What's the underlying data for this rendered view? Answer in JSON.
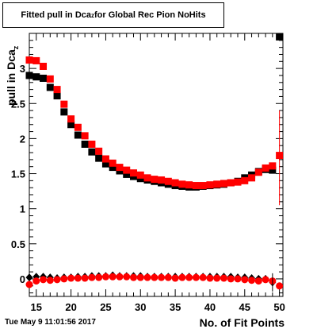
{
  "title": {
    "prefix": "Fitted pull in Dca",
    "sub": "z",
    "suffix": " for Global Rec Pion NoHits"
  },
  "timestamp": "Tue May  9 11:01:56 2017",
  "colors": {
    "series_black": "#000000",
    "series_red": "#ff0000"
  },
  "chart_data": {
    "type": "scatter",
    "xlabel": "No. of Fit Points",
    "ylabel_prefix": "pull in Dca",
    "ylabel_sub": "z",
    "xlim": [
      14,
      50.5
    ],
    "ylim": [
      -0.25,
      3.5
    ],
    "xticks": [
      15,
      20,
      25,
      30,
      35,
      40,
      45,
      50
    ],
    "yticks": [
      0,
      0.5,
      1,
      1.5,
      2,
      2.5,
      3
    ],
    "ytick_labels": [
      "0",
      "0.5",
      "1",
      "1.5",
      "2",
      "2.5",
      "3"
    ],
    "grid": false,
    "series": [
      {
        "color": "#000000",
        "marker": "square",
        "x": [
          14,
          15,
          16,
          17,
          18,
          19,
          20,
          21,
          22,
          23,
          24,
          25,
          26,
          27,
          28,
          29,
          30,
          31,
          32,
          33,
          34,
          35,
          36,
          37,
          38,
          39,
          40,
          41,
          42,
          43,
          44,
          45,
          46,
          47,
          48,
          49,
          50
        ],
        "y": [
          2.9,
          2.88,
          2.86,
          2.73,
          2.61,
          2.38,
          2.2,
          2.05,
          1.92,
          1.81,
          1.72,
          1.64,
          1.59,
          1.54,
          1.49,
          1.46,
          1.43,
          1.41,
          1.39,
          1.37,
          1.35,
          1.33,
          1.32,
          1.31,
          1.31,
          1.32,
          1.33,
          1.34,
          1.35,
          1.37,
          1.39,
          1.44,
          1.48,
          1.53,
          1.56,
          1.55,
          3.45
        ]
      },
      {
        "color": "#ff0000",
        "marker": "square",
        "x": [
          14,
          15,
          16,
          17,
          18,
          19,
          20,
          21,
          22,
          23,
          24,
          25,
          26,
          27,
          28,
          29,
          30,
          31,
          32,
          33,
          34,
          35,
          36,
          37,
          38,
          39,
          40,
          41,
          42,
          43,
          44,
          45,
          46,
          47,
          48,
          49,
          50
        ],
        "y": [
          3.12,
          3.11,
          3.03,
          2.85,
          2.7,
          2.49,
          2.28,
          2.16,
          2.04,
          1.92,
          1.82,
          1.71,
          1.65,
          1.59,
          1.55,
          1.51,
          1.48,
          1.44,
          1.42,
          1.41,
          1.39,
          1.37,
          1.35,
          1.34,
          1.33,
          1.33,
          1.34,
          1.35,
          1.36,
          1.37,
          1.38,
          1.4,
          1.44,
          1.52,
          1.58,
          1.61,
          1.76
        ]
      },
      {
        "color": "#000000",
        "marker": "diamond",
        "x": [
          14,
          15,
          16,
          17,
          18,
          19,
          20,
          21,
          22,
          23,
          24,
          25,
          26,
          27,
          28,
          29,
          30,
          31,
          32,
          33,
          34,
          35,
          36,
          37,
          38,
          39,
          40,
          41,
          42,
          43,
          44,
          45,
          46,
          47,
          48,
          49,
          50
        ],
        "y": [
          0.02,
          0.03,
          0.03,
          0.02,
          0.01,
          0.02,
          0.02,
          0.03,
          0.03,
          0.04,
          0.04,
          0.04,
          0.05,
          0.04,
          0.04,
          0.04,
          0.04,
          0.03,
          0.03,
          0.03,
          0.03,
          0.03,
          0.03,
          0.03,
          0.03,
          0.03,
          0.03,
          0.03,
          0.03,
          0.03,
          0.02,
          0.02,
          0.01,
          0.0,
          0.0,
          -0.05,
          3.45
        ]
      },
      {
        "color": "#ff0000",
        "marker": "circle",
        "x": [
          14,
          15,
          16,
          17,
          18,
          19,
          20,
          21,
          22,
          23,
          24,
          25,
          26,
          27,
          28,
          29,
          30,
          31,
          32,
          33,
          34,
          35,
          36,
          37,
          38,
          39,
          40,
          41,
          42,
          43,
          44,
          45,
          46,
          47,
          48,
          49,
          50
        ],
        "y": [
          -0.08,
          -0.03,
          -0.01,
          -0.02,
          -0.01,
          0.0,
          0.01,
          0.01,
          0.01,
          0.02,
          0.02,
          0.03,
          0.03,
          0.03,
          0.03,
          0.02,
          0.02,
          0.02,
          0.02,
          0.02,
          0.02,
          0.01,
          0.02,
          0.02,
          0.02,
          0.02,
          0.01,
          0.01,
          0.01,
          0.0,
          0.0,
          -0.01,
          -0.02,
          -0.03,
          -0.01,
          -0.03,
          -0.1
        ]
      }
    ]
  }
}
